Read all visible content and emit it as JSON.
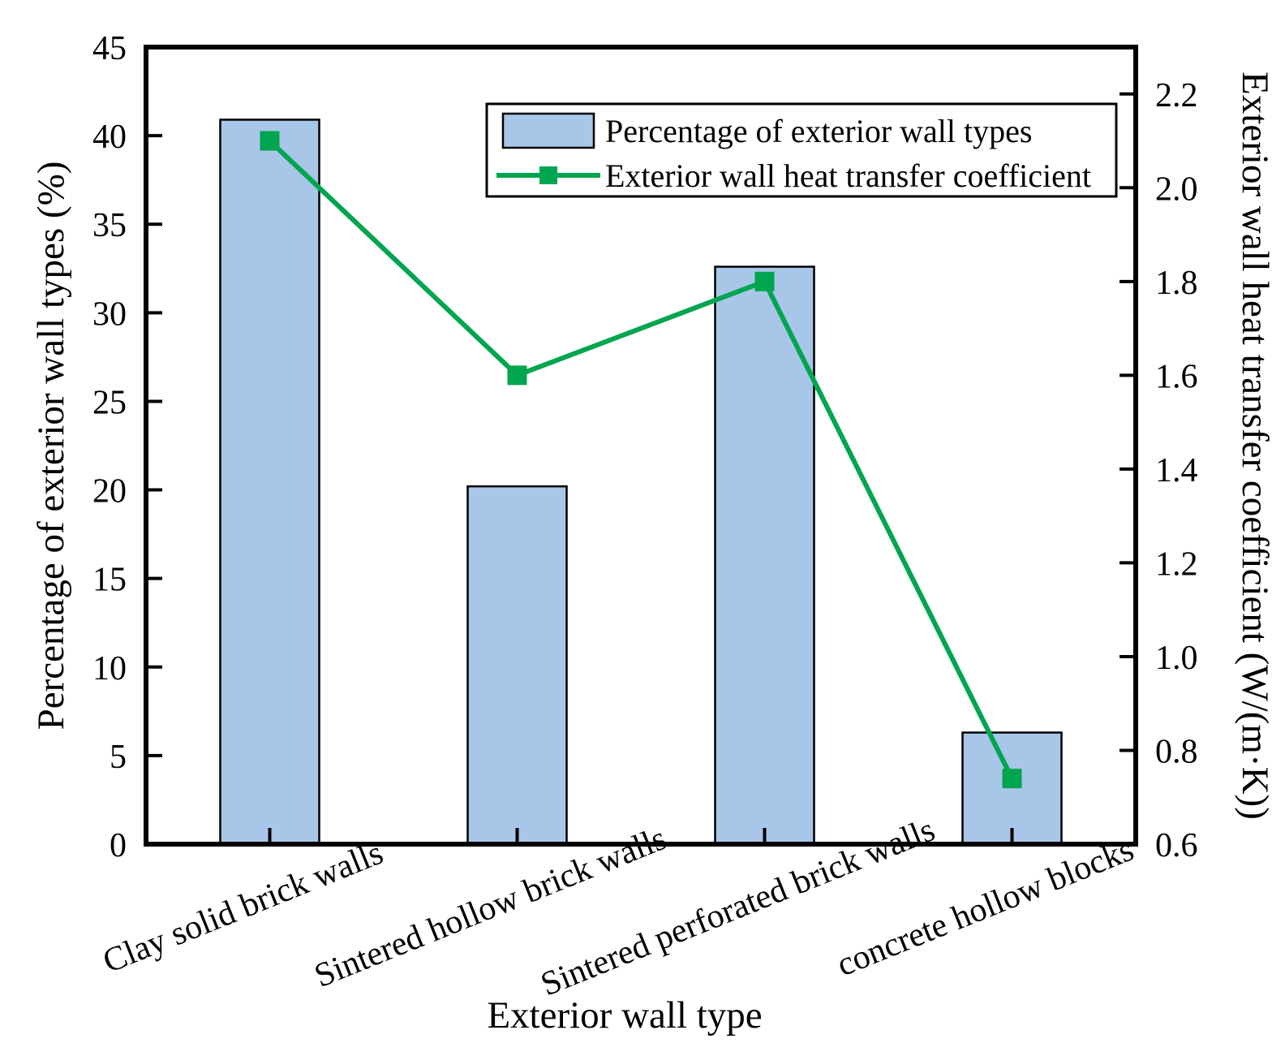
{
  "chart_data": {
    "type": "bar",
    "subtype": "bar+line-combo",
    "categories": [
      "Clay solid brick walls",
      "Sintered hollow brick walls",
      "Sintered perforated brick walls",
      "concrete hollow blocks"
    ],
    "series": [
      {
        "name": "Percentage of exterior wall types",
        "type": "bar",
        "axis": "left",
        "values": [
          40.9,
          20.2,
          32.6,
          6.3
        ],
        "color": "#a8c6e8",
        "edge_color": "#000000"
      },
      {
        "name": "Exterior wall heat transfer coefficient",
        "type": "line",
        "axis": "right",
        "values": [
          2.1,
          1.6,
          1.8,
          0.74
        ],
        "color": "#00a550",
        "marker": "square"
      }
    ],
    "xlabel": "Exterior wall type",
    "axes": {
      "left": {
        "label": "Percentage of exterior wall types (%)",
        "lim": [
          0,
          45
        ],
        "ticks": [
          0,
          5,
          10,
          15,
          20,
          25,
          30,
          35,
          40,
          45
        ],
        "tick_labels": [
          "0",
          "5",
          "10",
          "15",
          "20",
          "25",
          "30",
          "35",
          "40",
          "45"
        ]
      },
      "right": {
        "label": "Exterior wall heat transfer coefficient (W/(m·K))",
        "lim": [
          0.6,
          2.3
        ],
        "ticks": [
          0.6,
          0.8,
          1.0,
          1.2,
          1.4,
          1.6,
          1.8,
          2.0,
          2.2
        ],
        "tick_labels": [
          "0.6",
          "0.8",
          "1.0",
          "1.2",
          "1.4",
          "1.6",
          "1.8",
          "2.0",
          "2.2"
        ]
      }
    },
    "legend_position": "top-center",
    "grid": false,
    "frame_color": "#000000",
    "background_color": "#ffffff"
  }
}
